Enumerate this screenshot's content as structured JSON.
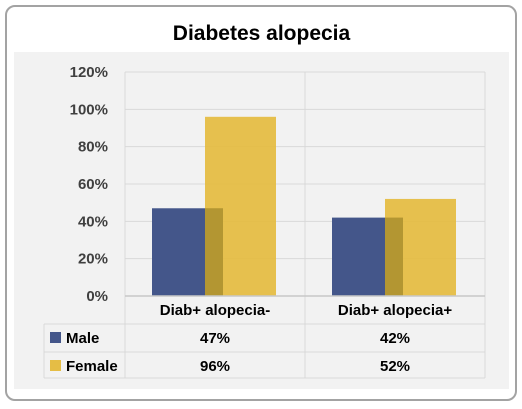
{
  "chart_data": {
    "type": "bar",
    "title": "Diabetes  alopecia",
    "categories": [
      "Diab+ alopecia-",
      "Diab+ alopecia+"
    ],
    "series": [
      {
        "name": "Male",
        "values": [
          47,
          42
        ],
        "labels": [
          "47%",
          "42%"
        ],
        "color": "#44568a"
      },
      {
        "name": "Female",
        "values": [
          96,
          52
        ],
        "labels": [
          "96%",
          "52%"
        ],
        "color": "#e5bd45"
      }
    ],
    "overlap_color": "#b39632",
    "ylim": [
      0,
      120
    ],
    "yticks": [
      "0%",
      "20%",
      "40%",
      "60%",
      "80%",
      "100%",
      "120%"
    ],
    "grid": true,
    "legend": "data-table-left"
  }
}
